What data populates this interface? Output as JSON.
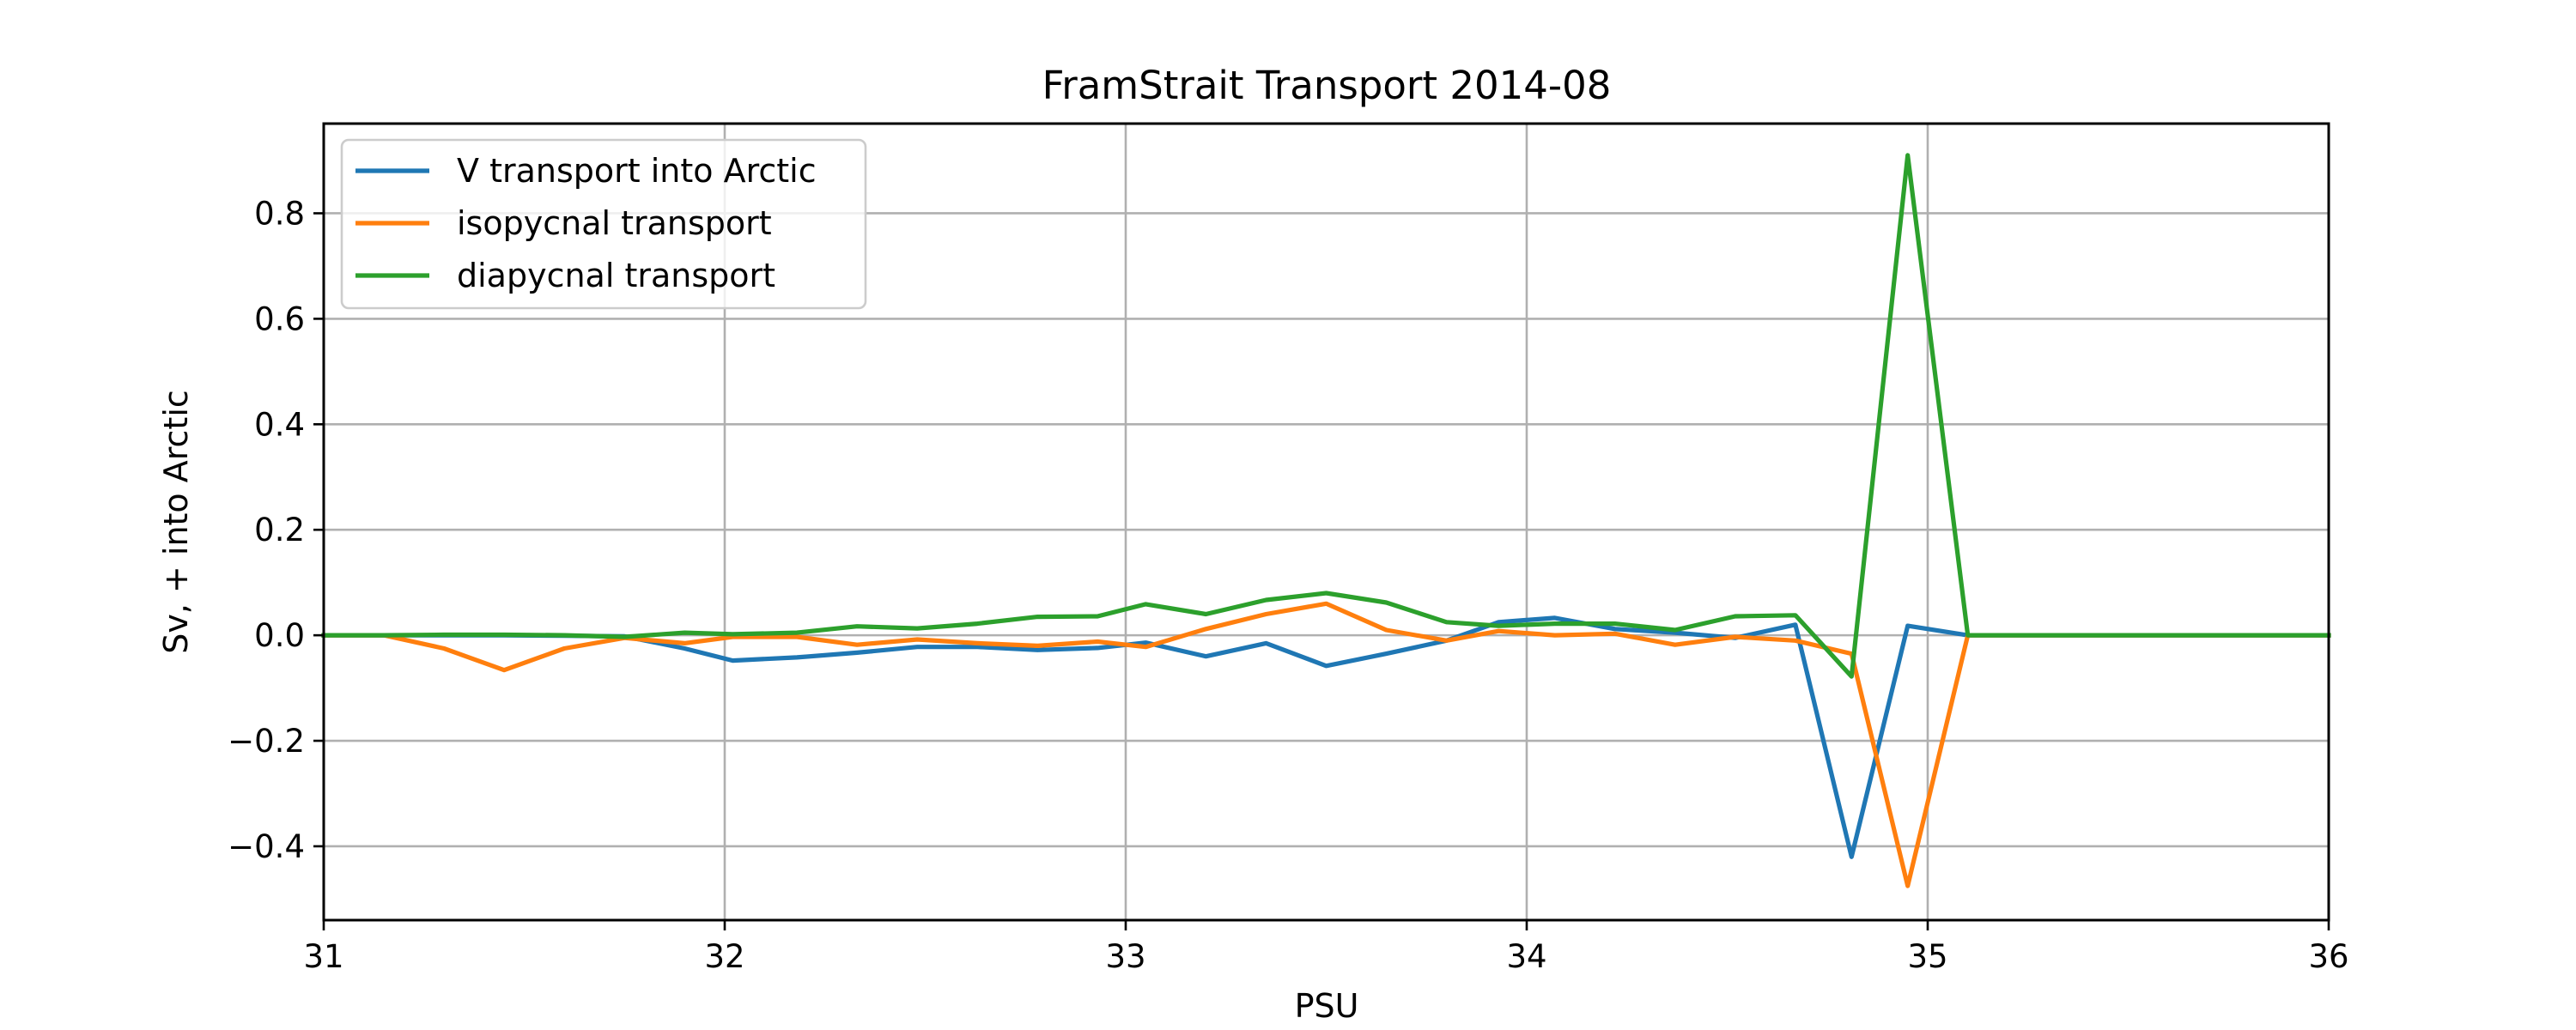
{
  "chart_data": {
    "type": "line",
    "title": "FramStrait Transport 2014-08",
    "xlabel": "PSU",
    "ylabel": "Sv, + into Arctic",
    "xlim": [
      31,
      36
    ],
    "ylim": [
      -0.54,
      0.97
    ],
    "xticks": [
      31,
      32,
      33,
      34,
      35,
      36
    ],
    "xtick_labels": [
      "31",
      "32",
      "33",
      "34",
      "35",
      "36"
    ],
    "yticks": [
      -0.4,
      -0.2,
      0.0,
      0.2,
      0.4,
      0.6,
      0.8
    ],
    "ytick_labels": [
      "−0.4",
      "−0.2",
      "0.0",
      "0.2",
      "0.4",
      "0.6",
      "0.8"
    ],
    "grid": true,
    "legend_position": "top-left",
    "series": [
      {
        "name": "V transport into Arctic",
        "color": "#1f77b4",
        "x": [
          31,
          31.15,
          31.3,
          31.45,
          31.6,
          31.75,
          31.9,
          32.02,
          32.18,
          32.33,
          32.48,
          32.63,
          32.78,
          32.93,
          33.05,
          33.2,
          33.35,
          33.5,
          33.65,
          33.8,
          33.93,
          34.07,
          34.22,
          34.37,
          34.52,
          34.67,
          34.81,
          34.95,
          35.1,
          36
        ],
        "y": [
          0.0,
          0.0,
          0.0,
          0.0,
          -0.001,
          -0.002,
          -0.025,
          -0.048,
          -0.042,
          -0.033,
          -0.022,
          -0.022,
          -0.028,
          -0.024,
          -0.014,
          -0.04,
          -0.015,
          -0.058,
          -0.035,
          -0.01,
          0.025,
          0.033,
          0.012,
          0.005,
          -0.005,
          0.02,
          -0.42,
          0.018,
          0.0,
          0.0
        ]
      },
      {
        "name": "isopycnal transport",
        "color": "#ff7f0e",
        "x": [
          31,
          31.15,
          31.3,
          31.45,
          31.6,
          31.75,
          31.9,
          32.02,
          32.18,
          32.33,
          32.48,
          32.63,
          32.78,
          32.93,
          33.05,
          33.2,
          33.35,
          33.5,
          33.65,
          33.8,
          33.93,
          34.07,
          34.22,
          34.37,
          34.52,
          34.67,
          34.81,
          34.95,
          35.1,
          36
        ],
        "y": [
          0.0,
          0.0,
          -0.025,
          -0.066,
          -0.025,
          -0.005,
          -0.015,
          -0.003,
          -0.003,
          -0.018,
          -0.008,
          -0.015,
          -0.02,
          -0.012,
          -0.022,
          0.012,
          0.04,
          0.06,
          0.01,
          -0.01,
          0.008,
          0.0,
          0.003,
          -0.018,
          -0.003,
          -0.01,
          -0.035,
          -0.475,
          0.0,
          0.0
        ]
      },
      {
        "name": "diapycnal transport",
        "color": "#2ca02c",
        "x": [
          31,
          31.15,
          31.3,
          31.45,
          31.6,
          31.75,
          31.9,
          32.02,
          32.18,
          32.33,
          32.48,
          32.63,
          32.78,
          32.93,
          33.05,
          33.2,
          33.35,
          33.5,
          33.65,
          33.8,
          33.93,
          34.07,
          34.22,
          34.37,
          34.52,
          34.67,
          34.81,
          34.95,
          35.1,
          36
        ],
        "y": [
          0.0,
          0.0,
          0.001,
          0.001,
          0.0,
          -0.003,
          0.005,
          0.002,
          0.005,
          0.017,
          0.013,
          0.022,
          0.035,
          0.036,
          0.059,
          0.04,
          0.067,
          0.08,
          0.062,
          0.025,
          0.018,
          0.022,
          0.022,
          0.01,
          0.036,
          0.038,
          -0.078,
          0.91,
          0.0,
          0.0
        ]
      }
    ]
  }
}
